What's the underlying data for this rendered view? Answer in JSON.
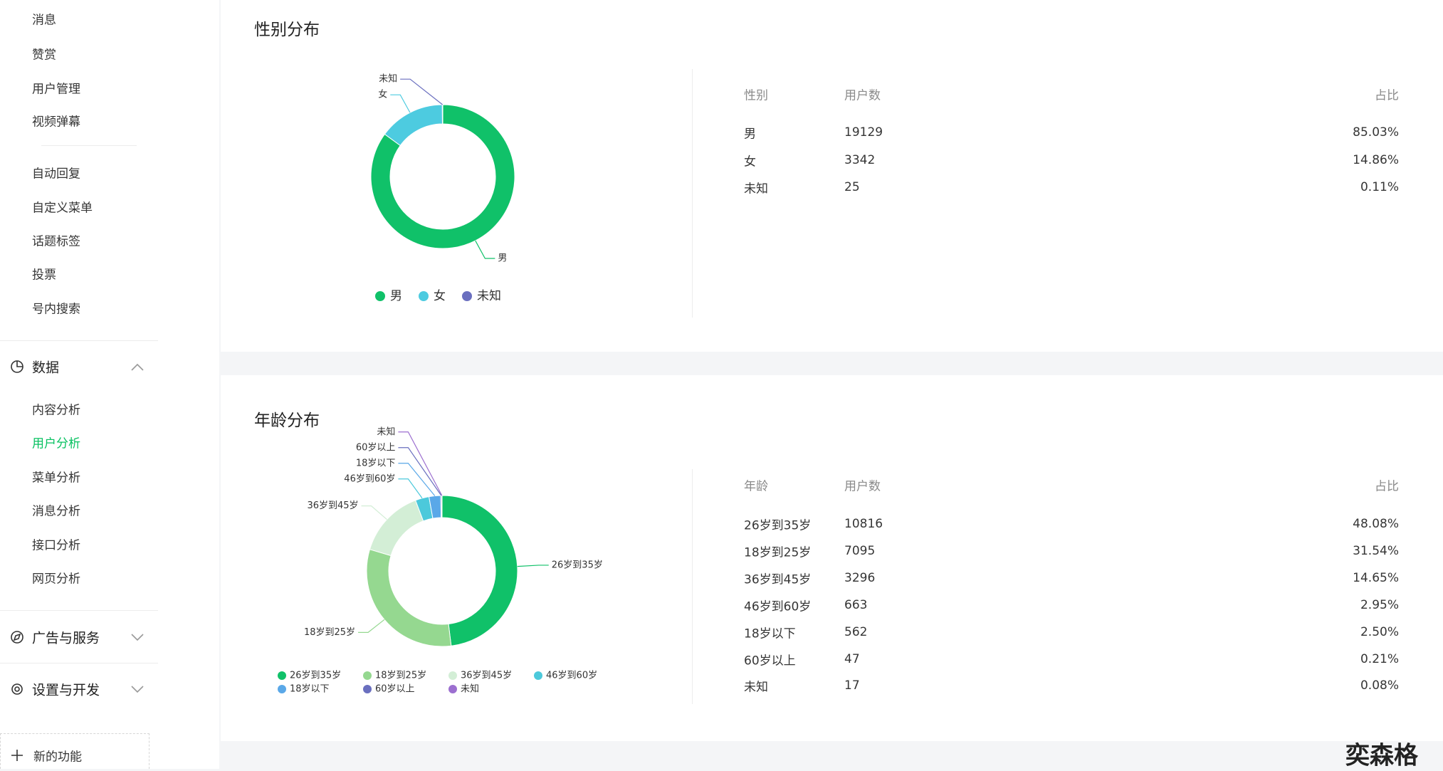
{
  "sidebar": {
    "items": [
      "消息",
      "赞赏",
      "用户管理",
      "视频弹幕",
      "自动回复",
      "自定义菜单",
      "话题标签",
      "投票",
      "号内搜索"
    ],
    "groups": [
      {
        "label": "数据",
        "items": [
          "内容分析",
          "用户分析",
          "菜单分析",
          "消息分析",
          "接口分析",
          "网页分析"
        ]
      },
      {
        "label": "广告与服务"
      },
      {
        "label": "设置与开发"
      }
    ],
    "footer": "新的功能"
  },
  "sections": [
    {
      "title": "性别分布",
      "chart": {
        "type": "pie",
        "colors": [
          "#10c169",
          "#4dcbe0",
          "#6a6fbf"
        ]
      },
      "table": {
        "columns": [
          "性别",
          "用户数",
          "占比"
        ],
        "rows": [
          [
            "男",
            19129,
            "85.03%"
          ],
          [
            "女",
            3342,
            "14.86%"
          ],
          [
            "未知",
            25,
            "0.11%"
          ]
        ]
      }
    },
    {
      "title": "年龄分布",
      "chart": {
        "type": "pie",
        "colors": [
          "#10c169",
          "#95d890",
          "#d3eed6",
          "#4cc9db",
          "#5aa8e8",
          "#6a6fbf",
          "#9c6fd0"
        ]
      },
      "table": {
        "columns": [
          "年龄",
          "用户数",
          "占比"
        ],
        "rows": [
          [
            "26岁到35岁",
            10816,
            "48.08%"
          ],
          [
            "18岁到25岁",
            7095,
            "31.54%"
          ],
          [
            "36岁到45岁",
            3296,
            "14.65%"
          ],
          [
            "46岁到60岁",
            663,
            "2.95%"
          ],
          [
            "18岁以下",
            562,
            "2.50%"
          ],
          [
            "60岁以上",
            47,
            "0.21%"
          ],
          [
            "未知",
            17,
            "0.08%"
          ]
        ]
      }
    }
  ],
  "watermark": "奕森格"
}
